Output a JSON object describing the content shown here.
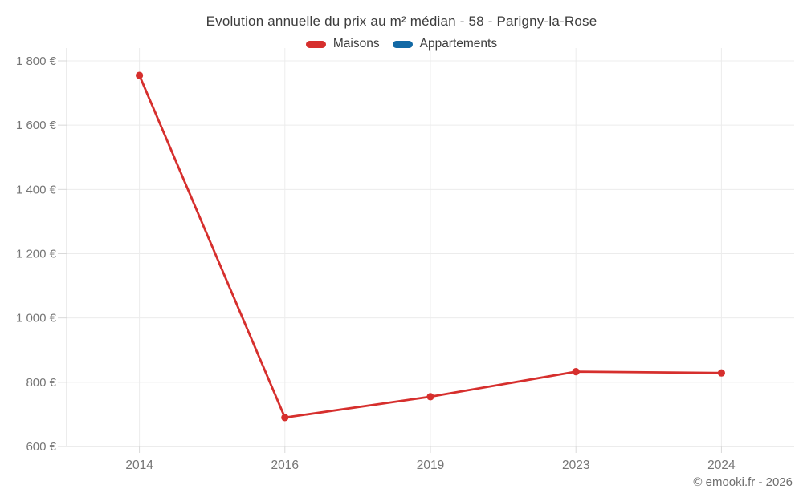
{
  "chart": {
    "title": "Evolution annuelle du prix au m² médian - 58 - Parigny-la-Rose"
  },
  "chart_data": {
    "type": "line",
    "title": "Evolution annuelle du prix au m² médian - 58 - Parigny-la-Rose",
    "categories": [
      "2014",
      "2016",
      "2019",
      "2023",
      "2024"
    ],
    "series": [
      {
        "name": "Maisons",
        "color": "#d62f2d",
        "marker": "circle",
        "values": [
          1755,
          690,
          755,
          833,
          829
        ]
      },
      {
        "name": "Appartements",
        "color": "#1269a5",
        "marker": "circle",
        "values": []
      }
    ],
    "xlabel": "",
    "ylabel": "",
    "ylim": [
      600,
      1800
    ],
    "y_tick_values": [
      600,
      800,
      1000,
      1200,
      1400,
      1600,
      1800
    ],
    "y_tick_suffix": " €",
    "thousands_separator": " ",
    "grid": true,
    "gridline_color": "#ececec",
    "axis_line_color": "#d9d9d9",
    "tick_label_color": "#757575",
    "legend_position": "top"
  },
  "footer": {
    "copyright": "© emooki.fr - 2026"
  }
}
